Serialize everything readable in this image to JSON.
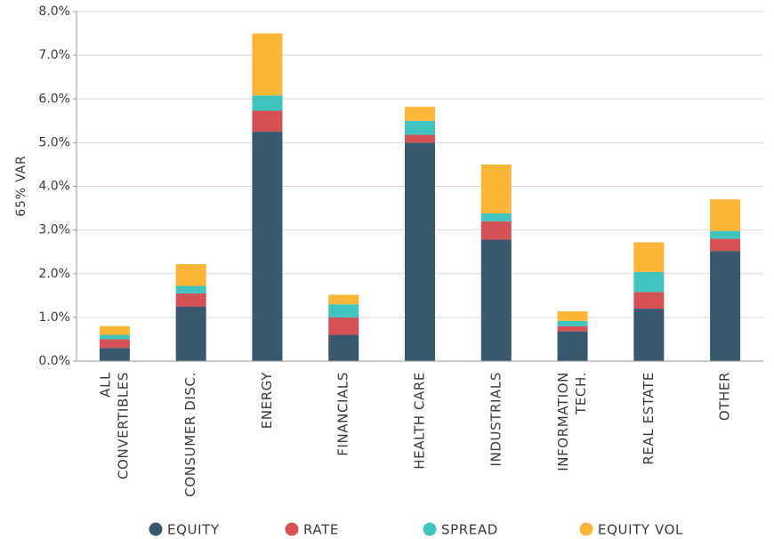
{
  "chart_data": {
    "type": "bar",
    "stacked": true,
    "title": "",
    "xlabel": "",
    "ylabel": "65% VAR",
    "ylim": [
      0,
      8
    ],
    "yticks": [
      "0.0%",
      "1.0%",
      "2.0%",
      "3.0%",
      "4.0%",
      "5.0%",
      "6.0%",
      "7.0%",
      "8.0%"
    ],
    "grid": true,
    "legend_position": "bottom",
    "categories": [
      [
        "ALL",
        "CONVERTIBLES"
      ],
      [
        "CONSUMER DISC."
      ],
      [
        "ENERGY"
      ],
      [
        "FINANCIALS"
      ],
      [
        "HEALTH CARE"
      ],
      [
        "INDUSTRIALS"
      ],
      [
        "INFORMATION",
        "TECH."
      ],
      [
        "REAL ESTATE"
      ],
      [
        "OTHER"
      ]
    ],
    "series": [
      {
        "name": "EQUITY",
        "color": "#38586f",
        "values": [
          0.3,
          1.25,
          5.25,
          0.6,
          5.0,
          2.78,
          0.68,
          1.2,
          2.52
        ]
      },
      {
        "name": "RATE",
        "color": "#d45155",
        "values": [
          0.2,
          0.3,
          0.48,
          0.4,
          0.18,
          0.42,
          0.12,
          0.38,
          0.28
        ]
      },
      {
        "name": "SPREAD",
        "color": "#41c4c0",
        "values": [
          0.1,
          0.17,
          0.35,
          0.3,
          0.32,
          0.18,
          0.12,
          0.46,
          0.18
        ]
      },
      {
        "name": "EQUITY VOL",
        "color": "#fbb537",
        "values": [
          0.2,
          0.5,
          1.42,
          0.22,
          0.32,
          1.12,
          0.22,
          0.68,
          0.72
        ]
      }
    ]
  }
}
